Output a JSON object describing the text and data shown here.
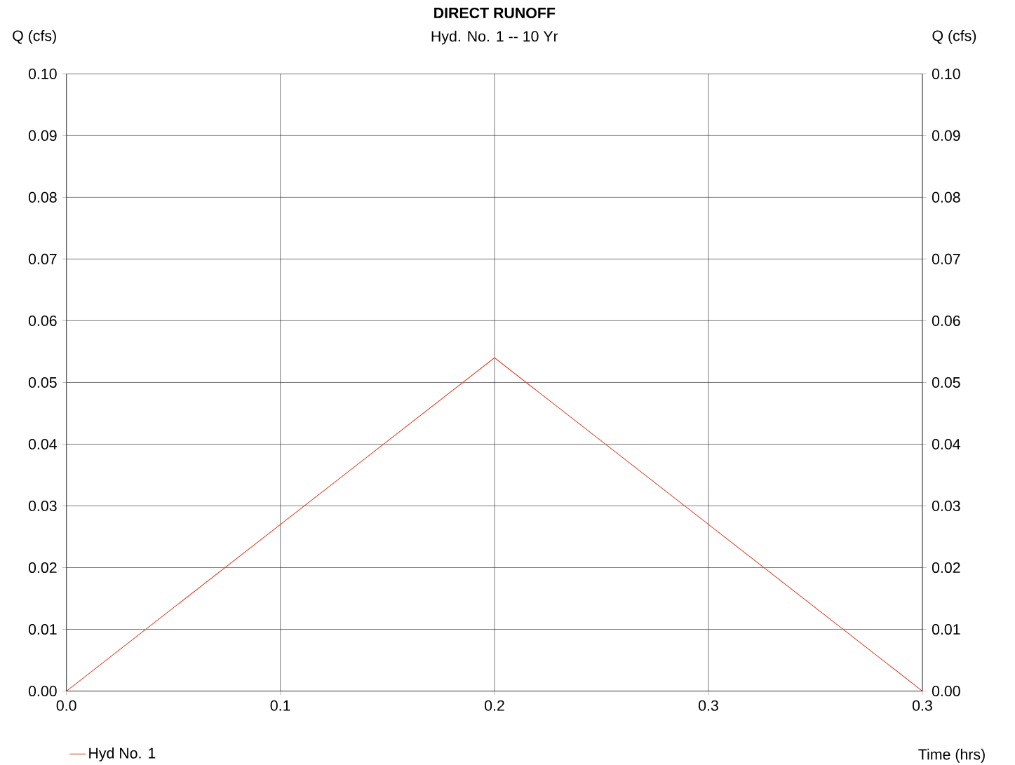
{
  "chart_data": {
    "type": "line",
    "title": "DIRECT RUNOFF",
    "subtitle": "Hyd. No. 1 -- 10 Yr",
    "xlabel": "Time (hrs)",
    "ylabel": "Q (cfs)",
    "y2label": "Q (cfs)",
    "x": [
      0,
      0.1667,
      0.3333
    ],
    "series": [
      {
        "name": "Hyd No. 1",
        "color": "#e0442c",
        "values": [
          0,
          0.054,
          0
        ]
      }
    ],
    "xlim": [
      0,
      0.3333
    ],
    "ylim": [
      0,
      0.1
    ],
    "xticks": [
      {
        "value": 0,
        "label": "0.0"
      },
      {
        "value": 0.0833,
        "label": "0.1"
      },
      {
        "value": 0.1667,
        "label": "0.2"
      },
      {
        "value": 0.25,
        "label": "0.3"
      },
      {
        "value": 0.3333,
        "label": "0.3"
      }
    ],
    "yticks": [
      {
        "value": 0,
        "label": "0.00"
      },
      {
        "value": 0.01,
        "label": "0.01"
      },
      {
        "value": 0.02,
        "label": "0.02"
      },
      {
        "value": 0.03,
        "label": "0.03"
      },
      {
        "value": 0.04,
        "label": "0.04"
      },
      {
        "value": 0.05,
        "label": "0.05"
      },
      {
        "value": 0.06,
        "label": "0.06"
      },
      {
        "value": 0.07,
        "label": "0.07"
      },
      {
        "value": 0.08,
        "label": "0.08"
      },
      {
        "value": 0.09,
        "label": "0.09"
      },
      {
        "value": 0.1,
        "label": "0.10"
      }
    ],
    "y2lim": [
      0,
      0.1
    ],
    "y2ticks": [
      {
        "value": 0,
        "label": "0.00"
      },
      {
        "value": 0.01,
        "label": "0.01"
      },
      {
        "value": 0.02,
        "label": "0.02"
      },
      {
        "value": 0.03,
        "label": "0.03"
      },
      {
        "value": 0.04,
        "label": "0.04"
      },
      {
        "value": 0.05,
        "label": "0.05"
      },
      {
        "value": 0.06,
        "label": "0.06"
      },
      {
        "value": 0.07,
        "label": "0.07"
      },
      {
        "value": 0.08,
        "label": "0.08"
      },
      {
        "value": 0.09,
        "label": "0.09"
      },
      {
        "value": 0.1,
        "label": "0.10"
      }
    ],
    "grid": true,
    "legend": "bottom left",
    "marker": "none",
    "line_style": "solid"
  }
}
